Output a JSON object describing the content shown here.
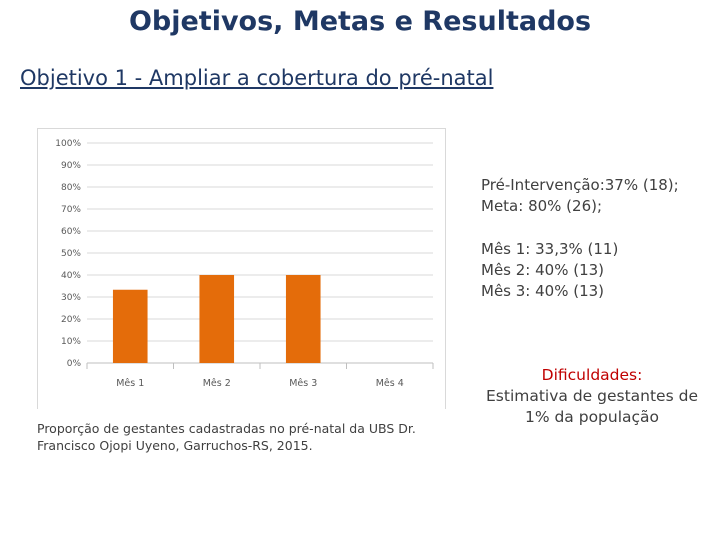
{
  "slide": {
    "title": "Objetivos, Metas e Resultados",
    "subtitle": "Objetivo 1 - Ampliar a cobertura do pré-natal",
    "caption": "Proporção de gestantes cadastradas no pré-natal da UBS Dr. Francisco Ojopi Uyeno, Garruchos-RS, 2015."
  },
  "stats": {
    "pre": "Pré-Intervenção:37% (18);",
    "meta": "Meta: 80% (26);",
    "mes1": "Mês 1: 33,3% (11)",
    "mes2": "Mês 2: 40% (13)",
    "mes3": "Mês 3: 40% (13)"
  },
  "difficulties": {
    "heading": "Dificuldades:",
    "text": "Estimativa de gestantes de 1% da população"
  },
  "chart_data": {
    "type": "bar",
    "categories": [
      "Mês 1",
      "Mês 2",
      "Mês 3",
      "Mês 4"
    ],
    "values": [
      33.3,
      40,
      40,
      0
    ],
    "yticks": [
      "0%",
      "10%",
      "20%",
      "30%",
      "40%",
      "50%",
      "60%",
      "70%",
      "80%",
      "90%",
      "100%"
    ],
    "ylim": [
      0,
      100
    ],
    "grid": true,
    "bar_color": "#e46c0a",
    "title": "",
    "xlabel": "",
    "ylabel": ""
  }
}
